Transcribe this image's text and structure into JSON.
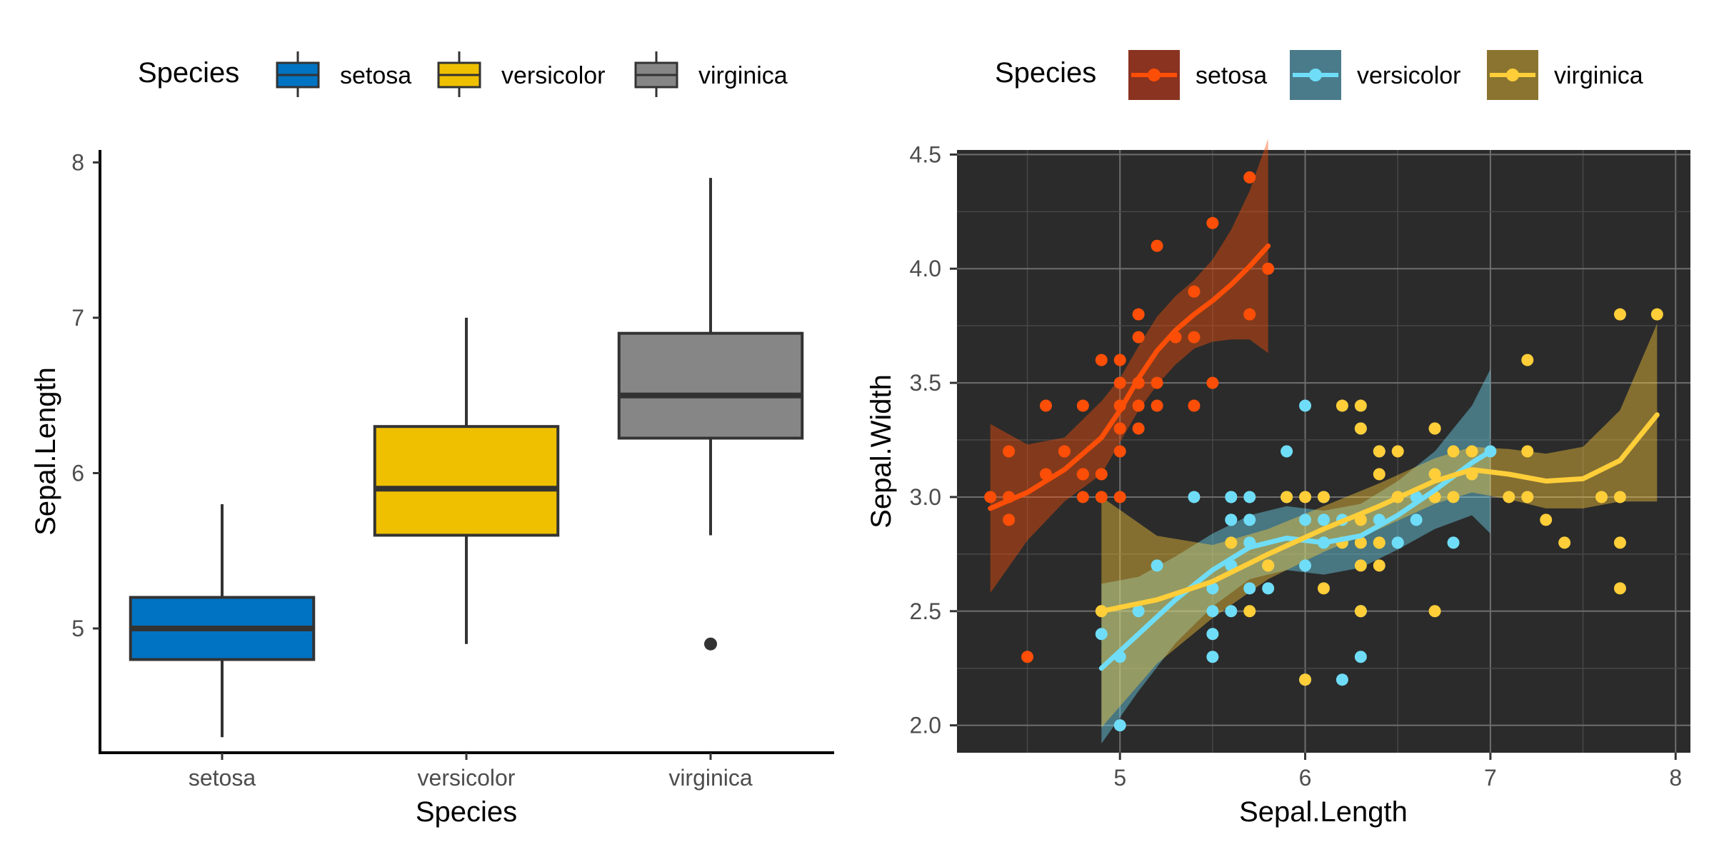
{
  "chart_data": [
    {
      "type": "box",
      "x_title": "Species",
      "y_title": "Sepal.Length",
      "legend": {
        "title": "Species",
        "position": "top"
      },
      "ylim": [
        4.2,
        8.08
      ],
      "y_ticks": [
        "5",
        "6",
        "7",
        "8"
      ],
      "categories": [
        "setosa",
        "versicolor",
        "virginica"
      ],
      "colors": [
        "#0073C2",
        "#EFC000",
        "#868686"
      ],
      "boxes": [
        {
          "category": "setosa",
          "whisker_low": 4.3,
          "q1": 4.8,
          "median": 5.0,
          "q3": 5.2,
          "whisker_high": 5.8,
          "outliers": []
        },
        {
          "category": "versicolor",
          "whisker_low": 4.9,
          "q1": 5.6,
          "median": 5.9,
          "q3": 6.3,
          "whisker_high": 7.0,
          "outliers": []
        },
        {
          "category": "virginica",
          "whisker_low": 5.6,
          "q1": 6.225,
          "median": 6.5,
          "q3": 6.9,
          "whisker_high": 7.9,
          "outliers": [
            4.9
          ]
        }
      ],
      "grid": false
    },
    {
      "type": "scatter",
      "x_title": "Sepal.Length",
      "y_title": "Sepal.Width",
      "legend": {
        "title": "Species",
        "position": "top"
      },
      "xlim": [
        4.12,
        8.08
      ],
      "ylim": [
        1.88,
        4.52
      ],
      "x_ticks": [
        "5",
        "6",
        "7",
        "8"
      ],
      "y_ticks": [
        "2.0",
        "2.5",
        "3.0",
        "3.5",
        "4.0",
        "4.5"
      ],
      "panel_background": "#2B2B2B",
      "grid": true,
      "smoother": "loess",
      "series": [
        {
          "name": "setosa",
          "color": "#FC4E07",
          "ribbon_color": "#8A3320",
          "points": [
            [
              5.1,
              3.5
            ],
            [
              4.9,
              3.0
            ],
            [
              4.7,
              3.2
            ],
            [
              4.6,
              3.1
            ],
            [
              5.0,
              3.6
            ],
            [
              5.4,
              3.9
            ],
            [
              4.6,
              3.4
            ],
            [
              5.0,
              3.4
            ],
            [
              4.4,
              2.9
            ],
            [
              4.9,
              3.1
            ],
            [
              5.4,
              3.7
            ],
            [
              4.8,
              3.4
            ],
            [
              4.8,
              3.0
            ],
            [
              4.3,
              3.0
            ],
            [
              5.8,
              4.0
            ],
            [
              5.7,
              4.4
            ],
            [
              5.1,
              3.8
            ],
            [
              5.7,
              3.8
            ],
            [
              5.4,
              3.4
            ],
            [
              5.2,
              4.1
            ],
            [
              5.5,
              4.2
            ],
            [
              4.5,
              2.3
            ],
            [
              4.4,
              3.2
            ],
            [
              5.0,
              3.5
            ],
            [
              5.1,
              3.3
            ],
            [
              5.3,
              3.7
            ],
            [
              5.0,
              3.2
            ],
            [
              5.2,
              3.5
            ],
            [
              5.2,
              3.4
            ],
            [
              4.7,
              3.2
            ],
            [
              4.8,
              3.1
            ],
            [
              5.5,
              3.5
            ],
            [
              4.9,
              3.6
            ],
            [
              4.4,
              3.0
            ],
            [
              5.0,
              3.3
            ],
            [
              5.1,
              3.4
            ],
            [
              5.1,
              3.7
            ],
            [
              4.8,
              3.1
            ],
            [
              5.1,
              3.5
            ],
            [
              5.0,
              3.0
            ]
          ],
          "smooth": [
            [
              4.3,
              2.95
            ],
            [
              4.5,
              3.02
            ],
            [
              4.7,
              3.12
            ],
            [
              4.9,
              3.26
            ],
            [
              5.0,
              3.38
            ],
            [
              5.1,
              3.52
            ],
            [
              5.2,
              3.64
            ],
            [
              5.3,
              3.73
            ],
            [
              5.4,
              3.8
            ],
            [
              5.5,
              3.86
            ],
            [
              5.6,
              3.93
            ],
            [
              5.7,
              4.01
            ],
            [
              5.8,
              4.1
            ]
          ],
          "band_upper": [
            [
              4.3,
              3.32
            ],
            [
              4.5,
              3.23
            ],
            [
              4.7,
              3.26
            ],
            [
              4.9,
              3.42
            ],
            [
              5.0,
              3.52
            ],
            [
              5.1,
              3.66
            ],
            [
              5.2,
              3.79
            ],
            [
              5.3,
              3.88
            ],
            [
              5.4,
              3.95
            ],
            [
              5.5,
              4.04
            ],
            [
              5.6,
              4.17
            ],
            [
              5.7,
              4.34
            ],
            [
              5.8,
              4.57
            ]
          ],
          "band_lower": [
            [
              5.8,
              3.63
            ],
            [
              5.7,
              3.69
            ],
            [
              5.6,
              3.69
            ],
            [
              5.5,
              3.68
            ],
            [
              5.4,
              3.65
            ],
            [
              5.3,
              3.58
            ],
            [
              5.2,
              3.49
            ],
            [
              5.1,
              3.38
            ],
            [
              5.0,
              3.24
            ],
            [
              4.9,
              3.1
            ],
            [
              4.7,
              2.98
            ],
            [
              4.5,
              2.81
            ],
            [
              4.3,
              2.58
            ]
          ]
        },
        {
          "name": "versicolor",
          "color": "#6FDDF7",
          "ribbon_color": "#4A7B8A",
          "points": [
            [
              7.0,
              3.2
            ],
            [
              6.4,
              3.2
            ],
            [
              6.9,
              3.1
            ],
            [
              5.5,
              2.3
            ],
            [
              6.5,
              2.8
            ],
            [
              5.7,
              2.8
            ],
            [
              6.3,
              3.3
            ],
            [
              4.9,
              2.4
            ],
            [
              6.6,
              2.9
            ],
            [
              5.2,
              2.7
            ],
            [
              5.0,
              2.0
            ],
            [
              5.9,
              3.0
            ],
            [
              6.0,
              2.2
            ],
            [
              6.1,
              2.9
            ],
            [
              5.6,
              2.9
            ],
            [
              6.7,
              3.1
            ],
            [
              5.6,
              3.0
            ],
            [
              5.8,
              2.7
            ],
            [
              6.2,
              2.2
            ],
            [
              5.6,
              2.5
            ],
            [
              5.9,
              3.2
            ],
            [
              6.1,
              2.8
            ],
            [
              6.3,
              2.5
            ],
            [
              6.1,
              2.8
            ],
            [
              6.4,
              2.9
            ],
            [
              6.6,
              3.0
            ],
            [
              6.8,
              2.8
            ],
            [
              6.7,
              3.0
            ],
            [
              6.0,
              2.9
            ],
            [
              5.7,
              2.6
            ],
            [
              5.5,
              2.4
            ],
            [
              5.8,
              2.7
            ],
            [
              6.0,
              2.7
            ],
            [
              5.4,
              3.0
            ],
            [
              6.0,
              3.4
            ],
            [
              6.3,
              2.3
            ],
            [
              5.6,
              3.0
            ],
            [
              5.5,
              2.5
            ],
            [
              5.5,
              2.6
            ],
            [
              6.1,
              3.0
            ],
            [
              5.8,
              2.6
            ],
            [
              5.0,
              2.3
            ],
            [
              5.6,
              2.7
            ],
            [
              5.7,
              3.0
            ],
            [
              5.7,
              2.9
            ],
            [
              6.2,
              2.9
            ],
            [
              5.1,
              2.5
            ],
            [
              5.7,
              2.8
            ],
            [
              6.5,
              2.8
            ],
            [
              5.6,
              2.9
            ]
          ],
          "smooth": [
            [
              4.9,
              2.25
            ],
            [
              5.1,
              2.4
            ],
            [
              5.3,
              2.55
            ],
            [
              5.5,
              2.68
            ],
            [
              5.7,
              2.78
            ],
            [
              5.9,
              2.82
            ],
            [
              6.1,
              2.8
            ],
            [
              6.3,
              2.83
            ],
            [
              6.5,
              2.92
            ],
            [
              6.7,
              3.03
            ],
            [
              6.9,
              3.15
            ],
            [
              7.0,
              3.2
            ]
          ],
          "band_upper": [
            [
              4.9,
              2.62
            ],
            [
              5.1,
              2.65
            ],
            [
              5.3,
              2.74
            ],
            [
              5.5,
              2.84
            ],
            [
              5.7,
              2.92
            ],
            [
              5.9,
              2.96
            ],
            [
              6.1,
              2.94
            ],
            [
              6.3,
              2.97
            ],
            [
              6.5,
              3.07
            ],
            [
              6.7,
              3.2
            ],
            [
              6.9,
              3.4
            ],
            [
              7.0,
              3.56
            ]
          ],
          "band_lower": [
            [
              7.0,
              2.84
            ],
            [
              6.9,
              2.92
            ],
            [
              6.7,
              2.86
            ],
            [
              6.5,
              2.77
            ],
            [
              6.3,
              2.69
            ],
            [
              6.1,
              2.66
            ],
            [
              5.9,
              2.68
            ],
            [
              5.7,
              2.64
            ],
            [
              5.5,
              2.52
            ],
            [
              5.3,
              2.36
            ],
            [
              5.1,
              2.15
            ],
            [
              4.9,
              1.92
            ]
          ]
        },
        {
          "name": "virginica",
          "color": "#FFCE39",
          "ribbon_color": "#8A7430",
          "points": [
            [
              6.3,
              3.3
            ],
            [
              5.8,
              2.7
            ],
            [
              7.1,
              3.0
            ],
            [
              6.3,
              2.9
            ],
            [
              6.5,
              3.0
            ],
            [
              7.6,
              3.0
            ],
            [
              4.9,
              2.5
            ],
            [
              7.3,
              2.9
            ],
            [
              6.7,
              2.5
            ],
            [
              7.2,
              3.6
            ],
            [
              6.5,
              3.2
            ],
            [
              6.4,
              2.7
            ],
            [
              6.8,
              3.0
            ],
            [
              5.7,
              2.5
            ],
            [
              6.4,
              3.2
            ],
            [
              6.5,
              3.0
            ],
            [
              7.7,
              3.8
            ],
            [
              7.7,
              2.6
            ],
            [
              6.0,
              2.2
            ],
            [
              6.9,
              3.2
            ],
            [
              5.6,
              2.8
            ],
            [
              7.7,
              2.8
            ],
            [
              6.3,
              2.7
            ],
            [
              6.7,
              3.3
            ],
            [
              7.2,
              3.2
            ],
            [
              6.2,
              2.8
            ],
            [
              6.1,
              3.0
            ],
            [
              6.4,
              2.8
            ],
            [
              7.2,
              3.0
            ],
            [
              7.4,
              2.8
            ],
            [
              7.9,
              3.8
            ],
            [
              6.4,
              2.8
            ],
            [
              6.3,
              2.8
            ],
            [
              6.1,
              2.6
            ],
            [
              7.7,
              3.0
            ],
            [
              6.3,
              3.4
            ],
            [
              6.4,
              3.1
            ],
            [
              6.0,
              3.0
            ],
            [
              6.9,
              3.1
            ],
            [
              6.7,
              3.1
            ],
            [
              5.8,
              2.7
            ],
            [
              6.8,
              3.2
            ],
            [
              6.7,
              3.3
            ],
            [
              6.7,
              3.0
            ],
            [
              6.3,
              2.5
            ],
            [
              6.5,
              3.0
            ],
            [
              6.2,
              3.4
            ],
            [
              5.9,
              3.0
            ]
          ],
          "smooth": [
            [
              4.9,
              2.5
            ],
            [
              5.2,
              2.55
            ],
            [
              5.5,
              2.63
            ],
            [
              5.8,
              2.75
            ],
            [
              6.1,
              2.86
            ],
            [
              6.4,
              2.96
            ],
            [
              6.7,
              3.07
            ],
            [
              6.9,
              3.12
            ],
            [
              7.1,
              3.1
            ],
            [
              7.3,
              3.07
            ],
            [
              7.5,
              3.08
            ],
            [
              7.7,
              3.16
            ],
            [
              7.9,
              3.36
            ]
          ],
          "band_upper": [
            [
              4.9,
              3.0
            ],
            [
              5.2,
              2.83
            ],
            [
              5.5,
              2.79
            ],
            [
              5.8,
              2.86
            ],
            [
              6.1,
              2.96
            ],
            [
              6.4,
              3.06
            ],
            [
              6.7,
              3.17
            ],
            [
              6.9,
              3.22
            ],
            [
              7.1,
              3.21
            ],
            [
              7.3,
              3.19
            ],
            [
              7.5,
              3.22
            ],
            [
              7.7,
              3.38
            ],
            [
              7.9,
              3.76
            ]
          ],
          "band_lower": [
            [
              7.9,
              2.98
            ],
            [
              7.7,
              2.98
            ],
            [
              7.5,
              2.95
            ],
            [
              7.3,
              2.95
            ],
            [
              7.1,
              2.99
            ],
            [
              6.9,
              3.02
            ],
            [
              6.7,
              2.97
            ],
            [
              6.4,
              2.86
            ],
            [
              6.1,
              2.76
            ],
            [
              5.8,
              2.64
            ],
            [
              5.5,
              2.47
            ],
            [
              5.2,
              2.27
            ],
            [
              4.9,
              1.99
            ]
          ]
        }
      ]
    }
  ]
}
